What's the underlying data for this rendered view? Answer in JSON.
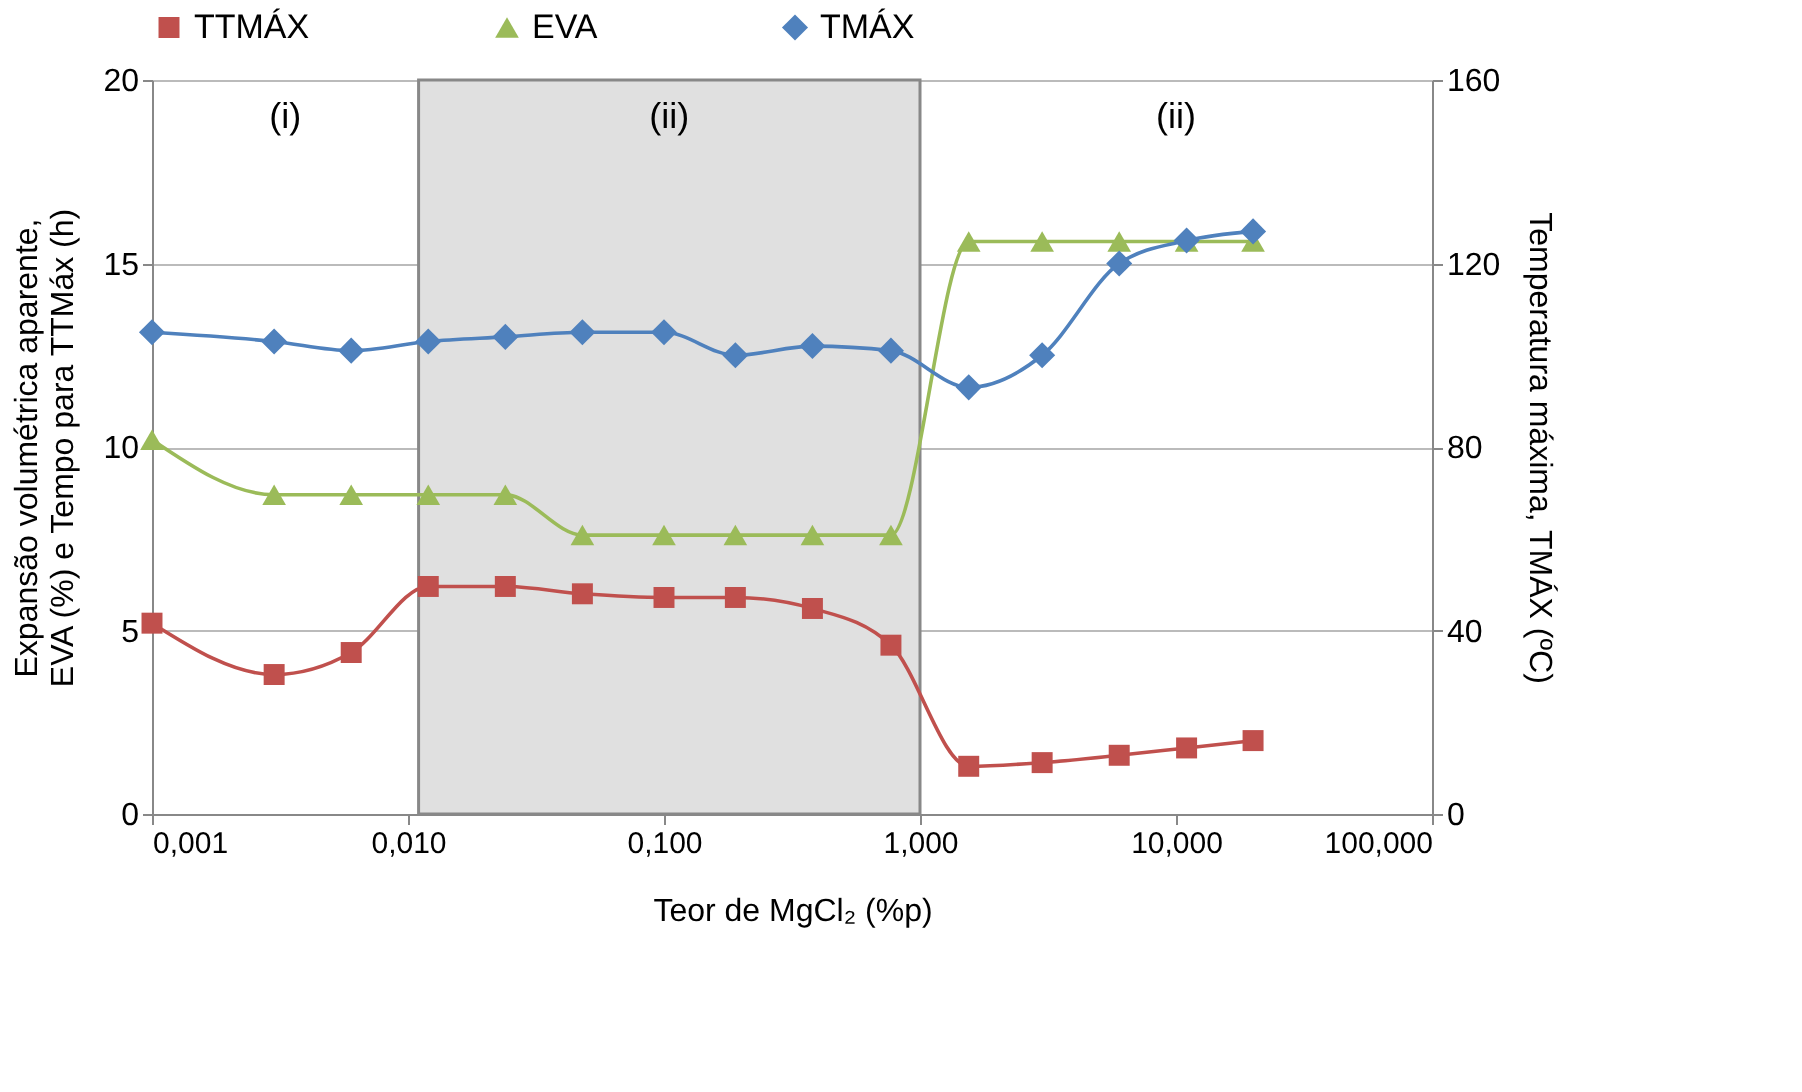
{
  "chart_data": {
    "type": "line",
    "xlabel": "Teor de MgCl₂ (%p)",
    "ylabel": "Expansão volumétrica aparente, EVA (%) e Tempo para TTMáx (h)",
    "y2label": "Temperatura máxima, TMÁX (ºC)",
    "log": "x",
    "grid": "y",
    "legend": "top",
    "line_style": "solid",
    "xlim": [
      0.001,
      100
    ],
    "xticks": [
      {
        "value": 0.001,
        "label": "0,001"
      },
      {
        "value": 0.01,
        "label": "0,010"
      },
      {
        "value": 0.1,
        "label": "0,100"
      },
      {
        "value": 1,
        "label": "1,000"
      },
      {
        "value": 10,
        "label": "10,000"
      },
      {
        "value": 100,
        "label": "100,000"
      }
    ],
    "ylim": [
      0,
      20
    ],
    "yticks": [
      0,
      5,
      10,
      15,
      20
    ],
    "y2lim": [
      0,
      160
    ],
    "y2ticks": [
      0,
      40,
      80,
      120,
      160
    ],
    "x": [
      0.001,
      0.003,
      0.006,
      0.012,
      0.024,
      0.048,
      0.1,
      0.19,
      0.38,
      0.77,
      1.55,
      3,
      6,
      11,
      20
    ],
    "series": [
      {
        "name": "TTMÁX",
        "color": "#c0504d",
        "marker": "square",
        "values": [
          5.2,
          3.8,
          4.4,
          6.2,
          6.2,
          6.0,
          5.9,
          5.9,
          5.6,
          4.6,
          1.3,
          1.4,
          1.6,
          1.8,
          2.0
        ]
      },
      {
        "name": "EVA",
        "color": "#9bbb59",
        "marker": "triangle",
        "values": [
          10.2,
          8.7,
          8.7,
          8.7,
          8.7,
          7.6,
          7.6,
          7.6,
          7.6,
          7.6,
          15.6,
          15.6,
          15.6,
          15.6,
          15.6
        ]
      },
      {
        "name": "TMÁX",
        "color": "#4f81bd",
        "marker": "diamond",
        "axis": "y2",
        "values": [
          105,
          103,
          101,
          103,
          104,
          105,
          105,
          100,
          102,
          101,
          93,
          100,
          120,
          125,
          127
        ]
      }
    ],
    "bands": [
      {
        "axis": "x",
        "from": 0.011,
        "to": 1,
        "color": "#e0e0e0"
      }
    ],
    "annotations": [
      "(i)",
      "(ii)",
      "(ii)"
    ]
  }
}
